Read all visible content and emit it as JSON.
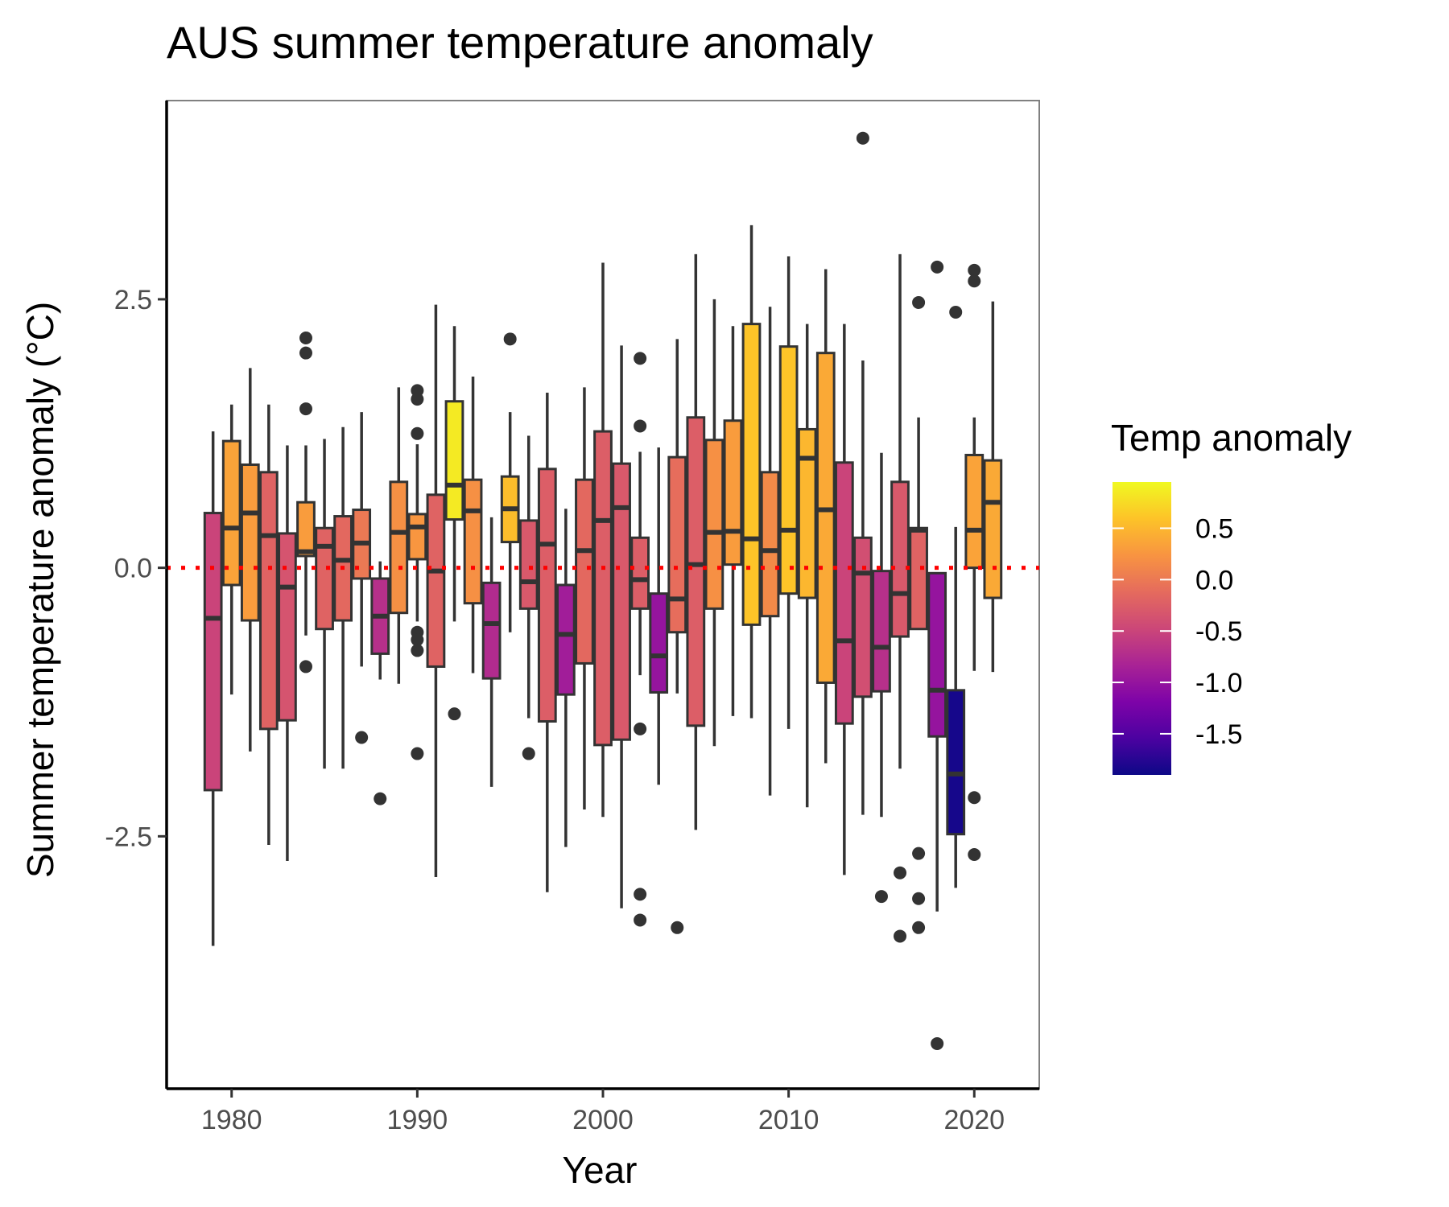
{
  "chart_data": {
    "type": "box",
    "title": "AUS summer temperature anomaly",
    "xlabel": "Year",
    "ylabel": "Summer temperature anomaly (°C)",
    "xlim": [
      1976.5,
      2023.5
    ],
    "ylim": [
      -4.85,
      4.35
    ],
    "x_ticks": [
      1980,
      1990,
      2000,
      2010,
      2020
    ],
    "y_ticks": [
      -2.5,
      0.0,
      2.5
    ],
    "y_tick_labels": [
      "-2.5",
      "0.0",
      "2.5"
    ],
    "reference_line": {
      "y": 0,
      "style": "dotted",
      "color": "#ff0000"
    },
    "grid": false,
    "box_outline_color": "#333333",
    "legend": {
      "title": "Temp anomaly",
      "placement": "right",
      "type": "colorbar",
      "palette": "plasma",
      "range": [
        -1.9,
        0.95
      ],
      "ticks": [
        0.5,
        0.0,
        -0.5,
        -1.0,
        -1.5
      ],
      "tick_labels": [
        "0.5",
        "0.0",
        "-0.5",
        "-1.0",
        "-1.5"
      ]
    },
    "boxes": [
      {
        "year": 1979,
        "lower": -3.52,
        "q1": -2.07,
        "median": -0.47,
        "q3": 0.51,
        "upper": 1.27,
        "mean": -0.5,
        "outliers": []
      },
      {
        "year": 1980,
        "lower": -1.18,
        "q1": -0.16,
        "median": 0.37,
        "q3": 1.18,
        "upper": 1.52,
        "mean": 0.35,
        "outliers": []
      },
      {
        "year": 1981,
        "lower": -1.71,
        "q1": -0.49,
        "median": 0.51,
        "q3": 0.96,
        "upper": 1.86,
        "mean": 0.3,
        "outliers": []
      },
      {
        "year": 1982,
        "lower": -2.58,
        "q1": -1.5,
        "median": 0.3,
        "q3": 0.89,
        "upper": 1.52,
        "mean": -0.2,
        "outliers": []
      },
      {
        "year": 1983,
        "lower": -2.73,
        "q1": -1.42,
        "median": -0.18,
        "q3": 0.32,
        "upper": 1.14,
        "mean": -0.35,
        "outliers": []
      },
      {
        "year": 1984,
        "lower": -0.63,
        "q1": 0.11,
        "median": 0.15,
        "q3": 0.61,
        "upper": 1.14,
        "mean": 0.3,
        "outliers": [
          2.14,
          2.0,
          1.48,
          -0.92
        ]
      },
      {
        "year": 1985,
        "lower": -1.87,
        "q1": -0.57,
        "median": 0.2,
        "q3": 0.37,
        "upper": 1.2,
        "mean": -0.2,
        "outliers": []
      },
      {
        "year": 1986,
        "lower": -1.87,
        "q1": -0.49,
        "median": 0.07,
        "q3": 0.48,
        "upper": 1.31,
        "mean": -0.15,
        "outliers": []
      },
      {
        "year": 1987,
        "lower": -0.92,
        "q1": -0.1,
        "median": 0.23,
        "q3": 0.54,
        "upper": 1.45,
        "mean": 0.0,
        "outliers": [
          -1.58
        ]
      },
      {
        "year": 1988,
        "lower": -1.04,
        "q1": -0.8,
        "median": -0.45,
        "q3": -0.1,
        "upper": 0.06,
        "mean": -0.7,
        "outliers": [
          -2.15
        ]
      },
      {
        "year": 1989,
        "lower": -1.08,
        "q1": -0.42,
        "median": 0.33,
        "q3": 0.8,
        "upper": 1.68,
        "mean": 0.2,
        "outliers": []
      },
      {
        "year": 1990,
        "lower": -0.5,
        "q1": 0.08,
        "median": 0.38,
        "q3": 0.5,
        "upper": 1.15,
        "mean": 0.25,
        "outliers": [
          1.65,
          1.57,
          1.25,
          -0.6,
          -0.67,
          -0.77,
          -1.73
        ]
      },
      {
        "year": 1991,
        "lower": -2.88,
        "q1": -0.92,
        "median": -0.03,
        "q3": 0.68,
        "upper": 2.45,
        "mean": -0.2,
        "outliers": []
      },
      {
        "year": 1992,
        "lower": -0.5,
        "q1": 0.45,
        "median": 0.77,
        "q3": 1.55,
        "upper": 2.25,
        "mean": 0.85,
        "outliers": [
          -1.36
        ]
      },
      {
        "year": 1993,
        "lower": -0.98,
        "q1": -0.33,
        "median": 0.53,
        "q3": 0.82,
        "upper": 1.78,
        "mean": 0.2,
        "outliers": []
      },
      {
        "year": 1994,
        "lower": -2.04,
        "q1": -1.03,
        "median": -0.52,
        "q3": -0.14,
        "upper": 0.47,
        "mean": -0.75,
        "outliers": []
      },
      {
        "year": 1995,
        "lower": -0.6,
        "q1": 0.24,
        "median": 0.55,
        "q3": 0.85,
        "upper": 1.45,
        "mean": 0.55,
        "outliers": [
          2.13
        ]
      },
      {
        "year": 1996,
        "lower": -1.4,
        "q1": -0.38,
        "median": -0.13,
        "q3": 0.44,
        "upper": 1.23,
        "mean": -0.3,
        "outliers": [
          -1.73
        ]
      },
      {
        "year": 1997,
        "lower": -3.02,
        "q1": -1.43,
        "median": 0.22,
        "q3": 0.92,
        "upper": 1.63,
        "mean": -0.25,
        "outliers": []
      },
      {
        "year": 1998,
        "lower": -2.6,
        "q1": -1.18,
        "median": -0.62,
        "q3": -0.16,
        "upper": 0.55,
        "mean": -0.9,
        "outliers": []
      },
      {
        "year": 1999,
        "lower": -2.25,
        "q1": -0.89,
        "median": 0.16,
        "q3": 0.82,
        "upper": 1.68,
        "mean": -0.15,
        "outliers": []
      },
      {
        "year": 2000,
        "lower": -2.32,
        "q1": -1.65,
        "median": 0.44,
        "q3": 1.27,
        "upper": 2.84,
        "mean": -0.25,
        "outliers": []
      },
      {
        "year": 2001,
        "lower": -3.17,
        "q1": -1.6,
        "median": 0.56,
        "q3": 0.97,
        "upper": 2.07,
        "mean": -0.3,
        "outliers": []
      },
      {
        "year": 2002,
        "lower": -1.0,
        "q1": -0.38,
        "median": -0.11,
        "q3": 0.28,
        "upper": 1.08,
        "mean": -0.25,
        "outliers": [
          1.95,
          1.32,
          -1.5,
          -3.04,
          -3.28
        ]
      },
      {
        "year": 2003,
        "lower": -2.02,
        "q1": -1.16,
        "median": -0.82,
        "q3": -0.24,
        "upper": 1.12,
        "mean": -1.0,
        "outliers": []
      },
      {
        "year": 2004,
        "lower": -1.17,
        "q1": -0.6,
        "median": -0.29,
        "q3": 1.03,
        "upper": 2.13,
        "mean": -0.1,
        "outliers": [
          -3.35
        ]
      },
      {
        "year": 2005,
        "lower": -2.44,
        "q1": -1.47,
        "median": 0.03,
        "q3": 1.4,
        "upper": 2.92,
        "mean": -0.25,
        "outliers": []
      },
      {
        "year": 2006,
        "lower": -1.66,
        "q1": -0.38,
        "median": 0.33,
        "q3": 1.19,
        "upper": 2.5,
        "mean": 0.2,
        "outliers": []
      },
      {
        "year": 2007,
        "lower": -1.38,
        "q1": 0.03,
        "median": 0.34,
        "q3": 1.37,
        "upper": 2.25,
        "mean": 0.3,
        "outliers": []
      },
      {
        "year": 2008,
        "lower": -1.4,
        "q1": -0.53,
        "median": 0.27,
        "q3": 2.27,
        "upper": 3.19,
        "mean": 0.6,
        "outliers": []
      },
      {
        "year": 2009,
        "lower": -2.12,
        "q1": -0.45,
        "median": 0.16,
        "q3": 0.89,
        "upper": 2.43,
        "mean": 0.15,
        "outliers": []
      },
      {
        "year": 2010,
        "lower": -1.5,
        "q1": -0.24,
        "median": 0.35,
        "q3": 2.06,
        "upper": 2.9,
        "mean": 0.6,
        "outliers": []
      },
      {
        "year": 2011,
        "lower": -2.23,
        "q1": -0.28,
        "median": 1.02,
        "q3": 1.29,
        "upper": 2.27,
        "mean": 0.5,
        "outliers": []
      },
      {
        "year": 2012,
        "lower": -1.82,
        "q1": -1.07,
        "median": 0.54,
        "q3": 2.0,
        "upper": 2.78,
        "mean": 0.4,
        "outliers": []
      },
      {
        "year": 2013,
        "lower": -2.86,
        "q1": -1.45,
        "median": -0.68,
        "q3": 0.98,
        "upper": 2.27,
        "mean": -0.5,
        "outliers": []
      },
      {
        "year": 2014,
        "lower": -2.3,
        "q1": -1.2,
        "median": -0.05,
        "q3": 0.28,
        "upper": 1.93,
        "mean": -0.4,
        "outliers": [
          4.0
        ]
      },
      {
        "year": 2015,
        "lower": -2.32,
        "q1": -1.15,
        "median": -0.74,
        "q3": -0.03,
        "upper": 1.07,
        "mean": -0.7,
        "outliers": [
          -3.06
        ]
      },
      {
        "year": 2016,
        "lower": -1.87,
        "q1": -0.64,
        "median": -0.24,
        "q3": 0.8,
        "upper": 2.92,
        "mean": -0.3,
        "outliers": [
          -2.84,
          -3.43
        ]
      },
      {
        "year": 2017,
        "lower": -0.5,
        "q1": -0.57,
        "median": 0.35,
        "q3": 0.37,
        "upper": 1.4,
        "mean": -0.2,
        "outliers": [
          2.47,
          -2.66,
          -3.08,
          -3.35
        ]
      },
      {
        "year": 2018,
        "lower": -3.2,
        "q1": -1.57,
        "median": -1.14,
        "q3": -0.05,
        "upper": -0.05,
        "mean": -1.0,
        "outliers": [
          2.8,
          -4.43
        ]
      },
      {
        "year": 2019,
        "lower": -2.98,
        "q1": -2.48,
        "median": -1.92,
        "q3": -1.14,
        "upper": 0.38,
        "mean": -1.85,
        "outliers": [
          2.38
        ]
      },
      {
        "year": 2020,
        "lower": -0.96,
        "q1": 0.0,
        "median": 0.35,
        "q3": 1.05,
        "upper": 1.4,
        "mean": 0.35,
        "outliers": [
          2.77,
          2.67,
          -2.14,
          -2.67
        ]
      },
      {
        "year": 2021,
        "lower": -0.97,
        "q1": -0.28,
        "median": 0.61,
        "q3": 1.0,
        "upper": 2.48,
        "mean": 0.4,
        "outliers": []
      }
    ]
  }
}
